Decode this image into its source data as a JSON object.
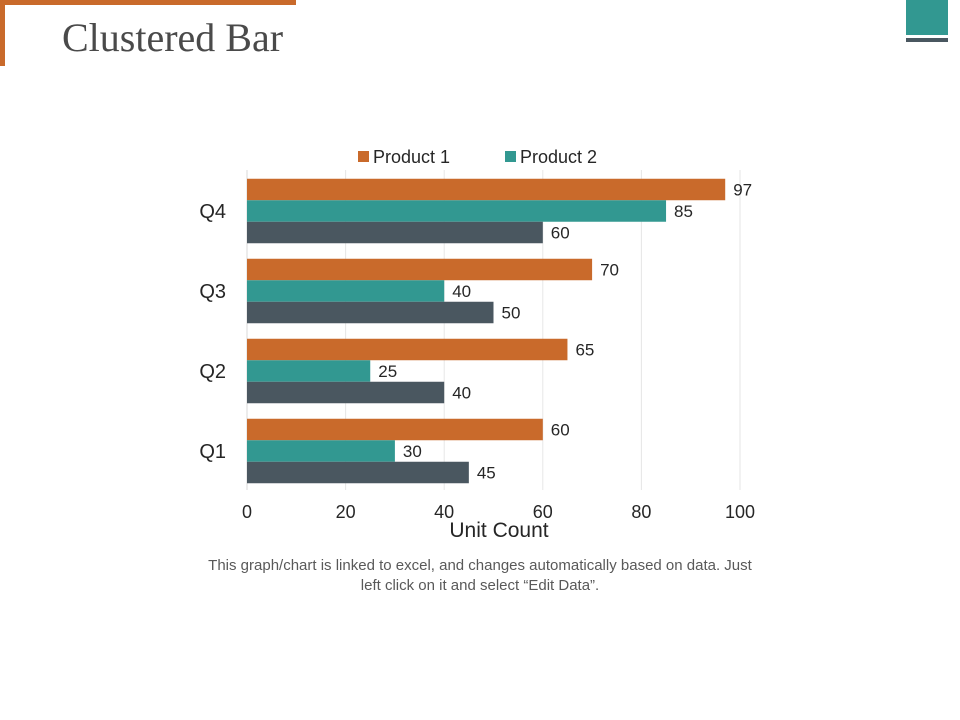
{
  "slide": {
    "title": "Clustered Bar",
    "note": "This graph/chart is linked to excel, and changes automatically based on data. Just left click on it and select “Edit Data”."
  },
  "chart_data": {
    "type": "bar",
    "orientation": "horizontal",
    "categories": [
      "Q1",
      "Q2",
      "Q3",
      "Q4"
    ],
    "series": [
      {
        "name": "Product 1",
        "color": "#c96a2b",
        "values": [
          60,
          65,
          70,
          97
        ]
      },
      {
        "name": "Product 2",
        "color": "#329891",
        "values": [
          30,
          25,
          40,
          85
        ]
      },
      {
        "name": "",
        "color": "#4a5760",
        "values": [
          45,
          40,
          50,
          60
        ]
      }
    ],
    "title": "",
    "xlabel": "Unit Count",
    "ylabel": "",
    "xlim": [
      0,
      100
    ],
    "xticks": [
      0,
      20,
      40,
      60,
      80,
      100
    ],
    "grid": true,
    "legend_position": "top"
  }
}
